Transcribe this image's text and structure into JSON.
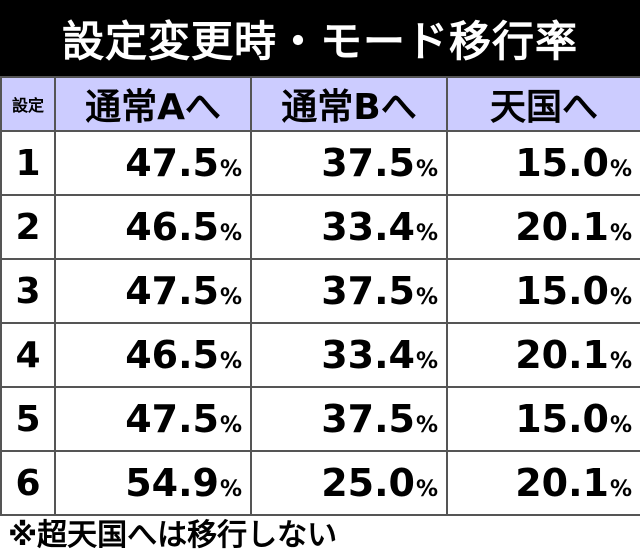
{
  "title": "設定変更時・モード移行率",
  "table": {
    "corner_label": "設定",
    "columns": [
      "通常Aへ",
      "通常Bへ",
      "天国へ"
    ],
    "percent_sign": "%",
    "rows": [
      {
        "setting": "1",
        "values": [
          "47.5",
          "37.5",
          "15.0"
        ]
      },
      {
        "setting": "2",
        "values": [
          "46.5",
          "33.4",
          "20.1"
        ]
      },
      {
        "setting": "3",
        "values": [
          "47.5",
          "37.5",
          "15.0"
        ]
      },
      {
        "setting": "4",
        "values": [
          "46.5",
          "33.4",
          "20.1"
        ]
      },
      {
        "setting": "5",
        "values": [
          "47.5",
          "37.5",
          "15.0"
        ]
      },
      {
        "setting": "6",
        "values": [
          "54.9",
          "25.0",
          "20.1"
        ]
      }
    ]
  },
  "note": "※超天国へは移行しない",
  "colors": {
    "title_bg": "#000000",
    "header_bg": "#ccccff",
    "border": "#555555"
  }
}
